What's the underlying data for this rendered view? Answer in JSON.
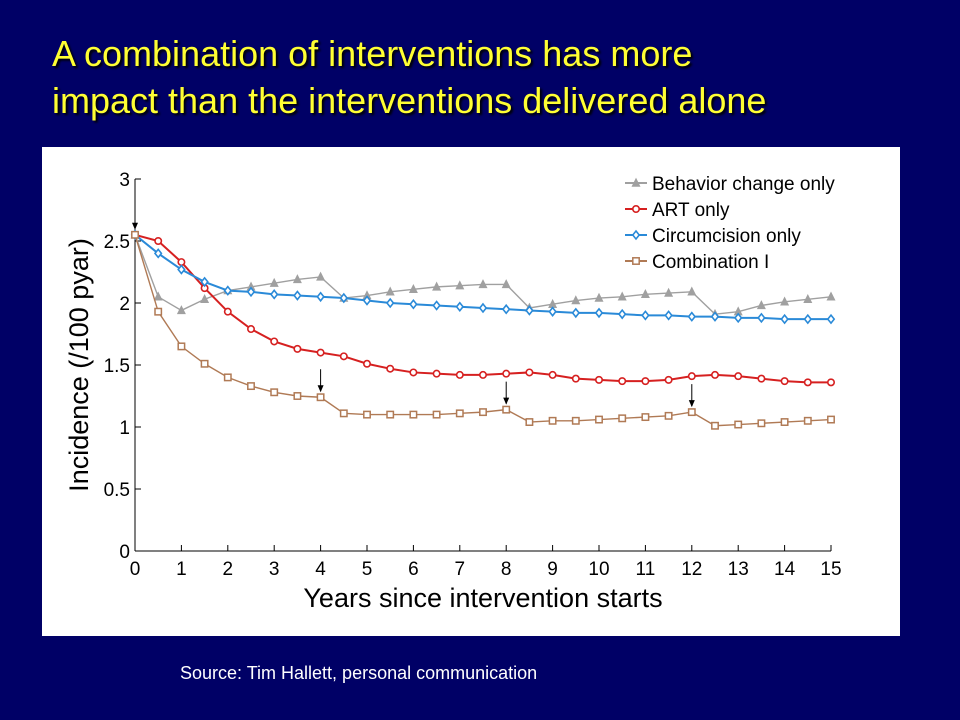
{
  "slide": {
    "title_line1": "A combination of interventions has more",
    "title_line2": "impact than the interventions delivered alone",
    "source": "Source: Tim Hallett, personal communication",
    "title_color": "#ffff33",
    "background_color": "#000066"
  },
  "chart_data": {
    "type": "line",
    "title": "",
    "xlabel": "Years since intervention starts",
    "ylabel": "Incidence (/100 pyar)",
    "xlim": [
      0,
      15
    ],
    "ylim": [
      0,
      3
    ],
    "xticks": [
      "0",
      "1",
      "2",
      "3",
      "4",
      "5",
      "6",
      "7",
      "8",
      "9",
      "10",
      "11",
      "12",
      "13",
      "14",
      "15"
    ],
    "yticks": [
      "0",
      "0.5",
      "1",
      "1.5",
      "2",
      "2.5",
      "3"
    ],
    "grid": false,
    "legend_position": "top-right",
    "x": [
      0,
      0.5,
      1,
      1.5,
      2,
      2.5,
      3,
      3.5,
      4,
      4.5,
      5,
      5.5,
      6,
      6.5,
      7,
      7.5,
      8,
      8.5,
      9,
      9.5,
      10,
      10.5,
      11,
      11.5,
      12,
      12.5,
      13,
      13.5,
      14,
      14.5,
      15
    ],
    "series": [
      {
        "name": "Behavior change only",
        "color": "#a0a0a0",
        "marker": "triangle",
        "values": [
          2.55,
          2.05,
          1.94,
          2.03,
          2.1,
          2.13,
          2.16,
          2.19,
          2.21,
          2.04,
          2.06,
          2.09,
          2.11,
          2.13,
          2.14,
          2.15,
          2.15,
          1.96,
          1.99,
          2.02,
          2.04,
          2.05,
          2.07,
          2.08,
          2.09,
          1.91,
          1.93,
          1.98,
          2.01,
          2.03,
          2.05
        ]
      },
      {
        "name": "ART only",
        "color": "#d62020",
        "marker": "circle",
        "values": [
          2.55,
          2.5,
          2.33,
          2.12,
          1.93,
          1.79,
          1.69,
          1.63,
          1.6,
          1.57,
          1.51,
          1.47,
          1.44,
          1.43,
          1.42,
          1.42,
          1.43,
          1.44,
          1.42,
          1.39,
          1.38,
          1.37,
          1.37,
          1.38,
          1.41,
          1.42,
          1.41,
          1.39,
          1.37,
          1.36,
          1.36
        ]
      },
      {
        "name": "Circumcision only",
        "color": "#2a8ad8",
        "marker": "diamond",
        "values": [
          2.55,
          2.4,
          2.27,
          2.17,
          2.1,
          2.09,
          2.07,
          2.06,
          2.05,
          2.04,
          2.02,
          2.0,
          1.99,
          1.98,
          1.97,
          1.96,
          1.95,
          1.94,
          1.93,
          1.92,
          1.92,
          1.91,
          1.9,
          1.9,
          1.89,
          1.89,
          1.88,
          1.88,
          1.87,
          1.87,
          1.87
        ]
      },
      {
        "name": "Combination I",
        "color": "#b07a55",
        "marker": "square",
        "values": [
          2.55,
          1.93,
          1.65,
          1.51,
          1.4,
          1.33,
          1.28,
          1.25,
          1.24,
          1.11,
          1.1,
          1.1,
          1.1,
          1.1,
          1.11,
          1.12,
          1.14,
          1.04,
          1.05,
          1.05,
          1.06,
          1.07,
          1.08,
          1.09,
          1.12,
          1.01,
          1.02,
          1.03,
          1.04,
          1.05,
          1.06
        ]
      }
    ],
    "annotations": [
      {
        "type": "arrow-down",
        "x": 0,
        "y": 2.55
      },
      {
        "type": "arrow-down",
        "x": 4,
        "y": 1.24
      },
      {
        "type": "arrow-down",
        "x": 8,
        "y": 1.14
      },
      {
        "type": "arrow-down",
        "x": 12,
        "y": 1.12
      }
    ]
  }
}
